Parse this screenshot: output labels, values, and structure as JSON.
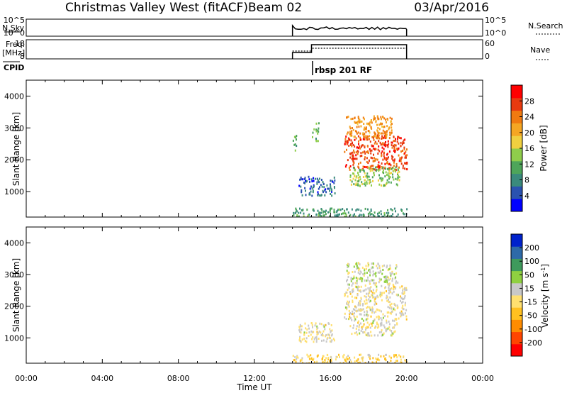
{
  "header": {
    "title": "Christmas Valley West (fitACF)",
    "beam": "Beam 02",
    "date": "03/Apr/2016"
  },
  "small_panels": {
    "nsky": {
      "label": "N.Sky",
      "left_ticks": [
        "10^5",
        "10^0"
      ],
      "right_ticks": [
        "10^5",
        "10^0"
      ],
      "legend": "N.Search"
    },
    "freq": {
      "label_line1": "Freq.",
      "label_line2": "[MHz]",
      "left_ticks": [
        "18",
        "8"
      ],
      "right_ticks": [
        "60",
        "0"
      ],
      "legend": "Nave"
    },
    "cpid": {
      "label": "CPID",
      "program": "rbsp 201 RF"
    }
  },
  "colors": {
    "power_scale": [
      "#0000ff",
      "#2a52b0",
      "#3a8a7c",
      "#4ea55a",
      "#8fcd4b",
      "#f0d040",
      "#f5a623",
      "#f07a10",
      "#e83a10",
      "#ff0000"
    ],
    "velocity_scale": [
      "#ff0000",
      "#ff4500",
      "#ff8c00",
      "#ffc020",
      "#ffe070",
      "#c8c8c8",
      "#8fd040",
      "#3e9a5c",
      "#2e6aa8",
      "#0022cc"
    ],
    "ground_scatter": "#c8c8c8"
  },
  "chart_data": [
    {
      "type": "heatmap",
      "name": "power",
      "ylabel": "Slant Range [km]",
      "xlim": [
        0,
        24
      ],
      "ylim": [
        200,
        4500
      ],
      "yticks": [
        "1000",
        "2000",
        "3000",
        "4000"
      ],
      "colorbar": {
        "label": "Power [dB]",
        "range": [
          0,
          32
        ],
        "ticks": [
          "28",
          "24",
          "20",
          "16",
          "12",
          "8",
          "4"
        ]
      },
      "regions": [
        {
          "x": [
            16.7,
            20.0
          ],
          "y": [
            1700,
            2800
          ],
          "value": 27
        },
        {
          "x": [
            16.8,
            19.2
          ],
          "y": [
            2700,
            3400
          ],
          "value": 22
        },
        {
          "x": [
            17.0,
            19.6
          ],
          "y": [
            1200,
            1800
          ],
          "value": 14
        },
        {
          "x": [
            14.3,
            16.2
          ],
          "y": [
            900,
            1500
          ],
          "value": 6
        },
        {
          "x": [
            14.0,
            20.0
          ],
          "y": [
            200,
            500
          ],
          "value": 10
        },
        {
          "x": [
            15.0,
            15.4
          ],
          "y": [
            2600,
            3200
          ],
          "value": 12
        },
        {
          "x": [
            14.0,
            14.2
          ],
          "y": [
            2300,
            2800
          ],
          "value": 12
        }
      ]
    },
    {
      "type": "heatmap",
      "name": "velocity",
      "xlabel": "Time UT",
      "ylabel": "Slant Range [km]",
      "xlim": [
        0,
        24
      ],
      "ylim": [
        200,
        4500
      ],
      "xticks": [
        "00:00",
        "04:00",
        "08:00",
        "12:00",
        "16:00",
        "20:00",
        "00:00"
      ],
      "yticks": [
        "1000",
        "2000",
        "3000",
        "4000"
      ],
      "colorbar": {
        "label": "Velocity [m s-1]",
        "range": [
          -250,
          250
        ],
        "ticks": [
          "200",
          "100",
          "50",
          "15",
          "-15",
          "-50",
          "-100",
          "-200"
        ]
      },
      "regions": [
        {
          "x": [
            16.7,
            20.0
          ],
          "y": [
            1600,
            2700
          ],
          "value": 0
        },
        {
          "x": [
            16.8,
            19.5
          ],
          "y": [
            2700,
            3400
          ],
          "value": 30
        },
        {
          "x": [
            17.0,
            19.5
          ],
          "y": [
            1100,
            1600
          ],
          "value": 0
        },
        {
          "x": [
            14.0,
            20.0
          ],
          "y": [
            200,
            500
          ],
          "value": -40
        },
        {
          "x": [
            14.3,
            16.2
          ],
          "y": [
            900,
            1500
          ],
          "value": 0
        }
      ]
    }
  ],
  "time_series": {
    "nsky_level": 0.35,
    "nsearch_level": 0.3,
    "freq_mhz": [
      10,
      13
    ],
    "nave": [
      20,
      25
    ],
    "operating_hours": [
      14.0,
      20.0
    ]
  }
}
